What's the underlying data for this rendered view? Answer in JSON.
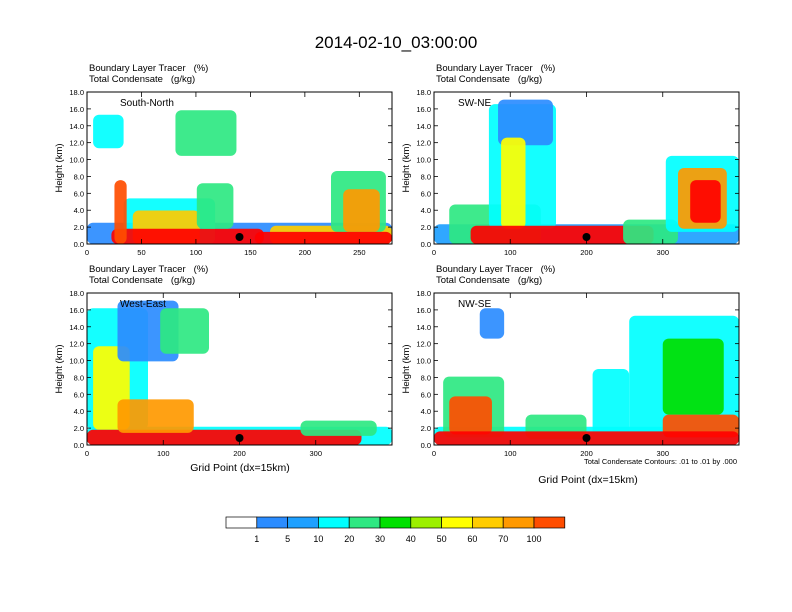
{
  "title": "2014-02-10_03:00:00",
  "panel_labels": {
    "tracer_label": "Boundary Layer Tracer",
    "tracer_units": "(%)",
    "condensate_label": "Total Condensate",
    "condensate_units": "(g/kg)"
  },
  "axis": {
    "ylabel": "Height (km)",
    "xlabel": "Grid Point (dx=15km)"
  },
  "contour_note": "Total Condensate Contours: .01 to .01 by .000",
  "colorbar": {
    "levels": [
      "1",
      "5",
      "10",
      "20",
      "30",
      "40",
      "50",
      "60",
      "70",
      "100"
    ],
    "colors": [
      "#ffffff",
      "#2b8cff",
      "#1ea0ff",
      "#00ffff",
      "#2ee882",
      "#00e000",
      "#9cf000",
      "#ffff00",
      "#ffcc00",
      "#ff9900",
      "#ff4d00",
      "#ff0000"
    ]
  },
  "chart_data": [
    {
      "type": "heatmap",
      "name": "South-North",
      "ylabel": "Height (km)",
      "xlim": [
        0,
        280
      ],
      "ylim": [
        0,
        18
      ],
      "x_ticks": [
        "0",
        "50",
        "100",
        "150",
        "200",
        "250"
      ],
      "y_ticks": [
        "0.0",
        "2.0",
        "4.0",
        "6.0",
        "8.0",
        "10.0",
        "12.0",
        "14.0",
        "16.0",
        "18.0"
      ],
      "marker_x": 140
    },
    {
      "type": "heatmap",
      "name": "SW-NE",
      "ylabel": "Height (km)",
      "xlim": [
        0,
        400
      ],
      "ylim": [
        0,
        18
      ],
      "x_ticks": [
        "0",
        "100",
        "200",
        "300"
      ],
      "y_ticks": [
        "0.0",
        "2.0",
        "4.0",
        "6.0",
        "8.0",
        "10.0",
        "12.0",
        "14.0",
        "16.0",
        "18.0"
      ],
      "marker_x": 200
    },
    {
      "type": "heatmap",
      "name": "West-East",
      "ylabel": "Height (km)",
      "xlabel": "Grid Point (dx=15km)",
      "xlim": [
        0,
        400
      ],
      "ylim": [
        0,
        18
      ],
      "x_ticks": [
        "0",
        "100",
        "200",
        "300"
      ],
      "y_ticks": [
        "0.0",
        "2.0",
        "4.0",
        "6.0",
        "8.0",
        "10.0",
        "12.0",
        "14.0",
        "16.0",
        "18.0"
      ],
      "marker_x": 200
    },
    {
      "type": "heatmap",
      "name": "NW-SE",
      "ylabel": "Height (km)",
      "xlabel": "Grid Point (dx=15km)",
      "xlim": [
        0,
        400
      ],
      "ylim": [
        0,
        18
      ],
      "x_ticks": [
        "0",
        "100",
        "200",
        "300"
      ],
      "y_ticks": [
        "0.0",
        "2.0",
        "4.0",
        "6.0",
        "8.0",
        "10.0",
        "12.0",
        "14.0",
        "16.0",
        "18.0"
      ],
      "marker_x": 200
    }
  ]
}
